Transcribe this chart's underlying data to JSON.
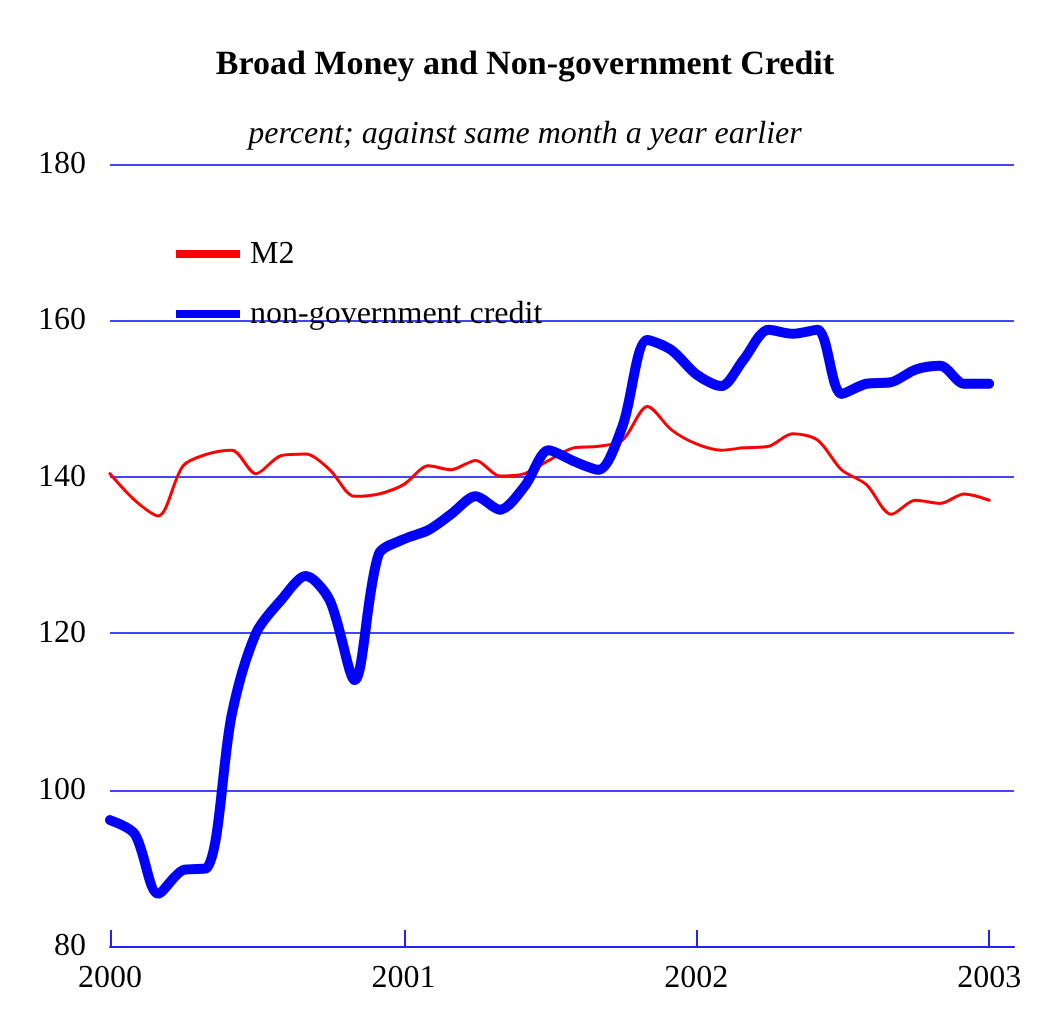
{
  "chart_data": {
    "type": "line",
    "title": "Broad Money and Non-government Credit",
    "subtitle": "percent; against same month a year earlier",
    "x": [
      "2000-01",
      "2000-02",
      "2000-03",
      "2000-04",
      "2000-05",
      "2000-06",
      "2000-07",
      "2000-08",
      "2000-09",
      "2000-10",
      "2000-11",
      "2000-12",
      "2001-01",
      "2001-02",
      "2001-03",
      "2001-04",
      "2001-05",
      "2001-06",
      "2001-07",
      "2001-08",
      "2001-09",
      "2001-10",
      "2001-11",
      "2001-12",
      "2002-01",
      "2002-02",
      "2002-03",
      "2002-04",
      "2002-05",
      "2002-06",
      "2002-07",
      "2002-08",
      "2002-09",
      "2002-10",
      "2002-11",
      "2002-12",
      "2003-01"
    ],
    "series": [
      {
        "name": "M2",
        "color": "#ff0000",
        "values": [
          140.4,
          137,
          135,
          141.4,
          142.9,
          143.4,
          140.4,
          142.7,
          142.9,
          140.9,
          137.5,
          137.8,
          139,
          141.4,
          140.9,
          142.1,
          140.1,
          140.4,
          142.1,
          143.7,
          143.9,
          144.7,
          149,
          146,
          144.2,
          143.4,
          143.7,
          143.9,
          145.5,
          144.7,
          140.9,
          139,
          135.2,
          137,
          136.6,
          137.8,
          137
        ]
      },
      {
        "name": "non-government credit",
        "color": "#0000ff",
        "values": [
          96.1,
          94.3,
          86.7,
          89.7,
          90,
          109.7,
          120,
          124.2,
          127.3,
          124.2,
          114,
          130.1,
          132,
          133.2,
          135.2,
          137.5,
          135.8,
          138.8,
          143.4,
          142,
          140.9,
          146.5,
          157.5,
          156.2,
          153.1,
          151.6,
          155,
          158.8,
          158.3,
          158.8,
          150.6,
          151.9,
          152.1,
          153.7,
          154.2,
          151.9,
          151.9
        ]
      }
    ],
    "xlim": [
      "2000-01",
      "2003-02"
    ],
    "xticks": [
      "2000",
      "2001",
      "2002",
      "2003"
    ],
    "ylim": [
      80,
      180
    ],
    "yticks": [
      80,
      100,
      120,
      140,
      160,
      180
    ],
    "grid": "y",
    "legend": "top left",
    "marker": "none",
    "line_style": "solid"
  }
}
